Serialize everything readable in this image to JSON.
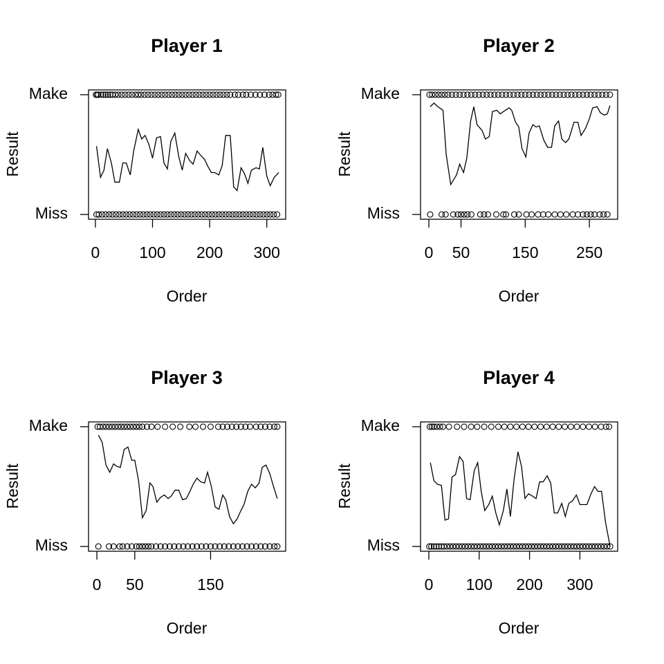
{
  "chart_data": [
    {
      "type": "scatter",
      "title": "Player 1",
      "xlabel": "Order",
      "ylabel": "Result",
      "xlim": [
        -12,
        333
      ],
      "ylim": [
        -0.04,
        1.04
      ],
      "xticks": [
        0,
        100,
        200,
        300
      ],
      "yticks": [
        {
          "value": 0,
          "label": "Miss"
        },
        {
          "value": 1,
          "label": "Make"
        }
      ],
      "make_order": [
        1,
        3,
        5,
        10,
        14,
        18,
        22,
        26,
        30,
        35,
        40,
        46,
        52,
        58,
        64,
        70,
        75,
        80,
        86,
        92,
        98,
        104,
        110,
        116,
        122,
        128,
        134,
        140,
        146,
        152,
        158,
        164,
        170,
        176,
        182,
        188,
        194,
        200,
        206,
        212,
        218,
        224,
        230,
        236,
        244,
        250,
        258,
        264,
        272,
        280,
        288,
        296,
        304,
        310,
        316,
        320
      ],
      "miss_order": [
        2,
        6,
        12,
        18,
        24,
        30,
        36,
        42,
        48,
        54,
        60,
        66,
        72,
        78,
        84,
        90,
        96,
        102,
        108,
        114,
        120,
        126,
        132,
        138,
        144,
        150,
        156,
        162,
        168,
        174,
        180,
        186,
        192,
        198,
        204,
        210,
        216,
        222,
        228,
        234,
        240,
        246,
        252,
        258,
        264,
        270,
        276,
        282,
        288,
        294,
        300,
        306,
        312,
        318
      ],
      "trend": {
        "x": [
          2,
          9,
          15,
          21,
          28,
          34,
          42,
          48,
          54,
          61,
          67,
          75,
          81,
          87,
          94,
          100,
          107,
          114,
          120,
          126,
          132,
          139,
          146,
          152,
          158,
          165,
          171,
          178,
          185,
          191,
          197,
          203,
          209,
          216,
          222,
          228,
          236,
          242,
          248,
          255,
          261,
          267,
          273,
          281,
          287,
          293,
          300,
          306,
          313,
          321
        ],
        "values": [
          0.57,
          0.31,
          0.37,
          0.55,
          0.43,
          0.27,
          0.27,
          0.43,
          0.43,
          0.33,
          0.53,
          0.71,
          0.63,
          0.66,
          0.58,
          0.47,
          0.64,
          0.65,
          0.43,
          0.38,
          0.61,
          0.68,
          0.48,
          0.37,
          0.51,
          0.45,
          0.42,
          0.53,
          0.49,
          0.46,
          0.4,
          0.35,
          0.35,
          0.33,
          0.41,
          0.66,
          0.66,
          0.23,
          0.2,
          0.39,
          0.34,
          0.26,
          0.37,
          0.39,
          0.38,
          0.56,
          0.32,
          0.24,
          0.31,
          0.35
        ]
      }
    },
    {
      "type": "scatter",
      "title": "Player 2",
      "xlabel": "Order",
      "ylabel": "Result",
      "xlim": [
        -13,
        294
      ],
      "ylim": [
        -0.04,
        1.04
      ],
      "xticks": [
        0,
        50,
        150,
        250
      ],
      "yticks": [
        {
          "value": 0,
          "label": "Miss"
        },
        {
          "value": 1,
          "label": "Make"
        }
      ],
      "make_order": [
        1,
        5,
        10,
        15,
        20,
        25,
        30,
        36,
        42,
        48,
        54,
        60,
        66,
        72,
        78,
        84,
        90,
        96,
        102,
        108,
        114,
        120,
        126,
        132,
        138,
        144,
        150,
        156,
        162,
        168,
        174,
        180,
        186,
        192,
        198,
        204,
        210,
        216,
        222,
        228,
        234,
        240,
        246,
        252,
        258,
        264,
        270,
        276,
        282
      ],
      "miss_order": [
        2,
        20,
        26,
        38,
        45,
        50,
        55,
        60,
        66,
        80,
        86,
        92,
        105,
        116,
        120,
        133,
        140,
        152,
        160,
        170,
        178,
        186,
        196,
        205,
        214,
        224,
        232,
        240,
        246,
        252,
        258,
        266,
        272,
        278
      ],
      "trend": {
        "x": [
          2,
          8,
          14,
          22,
          27,
          34,
          43,
          48,
          54,
          59,
          65,
          70,
          75,
          83,
          88,
          94,
          99,
          106,
          111,
          119,
          125,
          129,
          135,
          140,
          145,
          151,
          156,
          162,
          167,
          172,
          179,
          185,
          191,
          196,
          202,
          207,
          213,
          218,
          226,
          232,
          237,
          244,
          250,
          255,
          262,
          267,
          273,
          278,
          282
        ],
        "values": [
          0.9,
          0.93,
          0.9,
          0.87,
          0.5,
          0.25,
          0.33,
          0.42,
          0.35,
          0.47,
          0.78,
          0.9,
          0.75,
          0.7,
          0.63,
          0.65,
          0.86,
          0.87,
          0.84,
          0.87,
          0.89,
          0.87,
          0.77,
          0.73,
          0.55,
          0.48,
          0.68,
          0.75,
          0.73,
          0.74,
          0.62,
          0.56,
          0.56,
          0.74,
          0.78,
          0.63,
          0.6,
          0.63,
          0.77,
          0.77,
          0.66,
          0.72,
          0.8,
          0.89,
          0.9,
          0.85,
          0.83,
          0.84,
          0.91
        ]
      }
    },
    {
      "type": "scatter",
      "title": "Player 3",
      "xlabel": "Order",
      "ylabel": "Result",
      "xlim": [
        -11,
        249
      ],
      "ylim": [
        -0.04,
        1.04
      ],
      "xticks": [
        0,
        50,
        150
      ],
      "yticks": [
        {
          "value": 0,
          "label": "Miss"
        },
        {
          "value": 1,
          "label": "Make"
        }
      ],
      "make_order": [
        1,
        4,
        8,
        12,
        16,
        20,
        24,
        28,
        32,
        36,
        40,
        44,
        48,
        52,
        56,
        60,
        66,
        72,
        80,
        90,
        100,
        110,
        122,
        130,
        140,
        150,
        160,
        166,
        172,
        178,
        184,
        190,
        196,
        202,
        210,
        216,
        222,
        228,
        234,
        238
      ],
      "miss_order": [
        2,
        16,
        22,
        30,
        34,
        40,
        46,
        52,
        56,
        60,
        64,
        68,
        72,
        78,
        84,
        90,
        96,
        102,
        108,
        114,
        120,
        126,
        132,
        138,
        144,
        150,
        156,
        162,
        168,
        174,
        180,
        186,
        192,
        198,
        204,
        210,
        216,
        222,
        228,
        234,
        238
      ],
      "trend": {
        "x": [
          2,
          7,
          12,
          17,
          22,
          26,
          31,
          36,
          41,
          46,
          50,
          55,
          60,
          65,
          70,
          74,
          79,
          84,
          89,
          94,
          98,
          103,
          108,
          113,
          118,
          122,
          127,
          132,
          137,
          142,
          146,
          151,
          156,
          161,
          166,
          170,
          175,
          180,
          185,
          190,
          194,
          199,
          204,
          209,
          214,
          218,
          223,
          228,
          233,
          238
        ],
        "values": [
          0.93,
          0.87,
          0.68,
          0.62,
          0.69,
          0.67,
          0.66,
          0.81,
          0.83,
          0.72,
          0.72,
          0.55,
          0.24,
          0.3,
          0.53,
          0.5,
          0.37,
          0.41,
          0.43,
          0.4,
          0.42,
          0.47,
          0.47,
          0.39,
          0.4,
          0.45,
          0.52,
          0.57,
          0.54,
          0.53,
          0.62,
          0.5,
          0.33,
          0.31,
          0.43,
          0.39,
          0.25,
          0.19,
          0.23,
          0.3,
          0.35,
          0.46,
          0.52,
          0.49,
          0.53,
          0.66,
          0.68,
          0.61,
          0.5,
          0.4
        ]
      }
    },
    {
      "type": "scatter",
      "title": "Player 4",
      "xlabel": "Order",
      "ylabel": "Result",
      "xlim": [
        -16.5,
        375
      ],
      "ylim": [
        -0.04,
        1.04
      ],
      "xticks": [
        0,
        100,
        200,
        300
      ],
      "yticks": [
        {
          "value": 0,
          "label": "Miss"
        },
        {
          "value": 1,
          "label": "Make"
        }
      ],
      "make_order": [
        2,
        6,
        10,
        16,
        22,
        28,
        40,
        56,
        70,
        84,
        96,
        110,
        124,
        138,
        150,
        162,
        174,
        186,
        198,
        210,
        222,
        234,
        246,
        258,
        270,
        282,
        294,
        306,
        318,
        330,
        342,
        352,
        358
      ],
      "miss_order": [
        1,
        5,
        10,
        15,
        20,
        25,
        30,
        36,
        42,
        48,
        54,
        60,
        66,
        72,
        78,
        84,
        90,
        96,
        102,
        108,
        114,
        120,
        126,
        132,
        138,
        144,
        150,
        156,
        162,
        168,
        174,
        180,
        186,
        192,
        198,
        204,
        210,
        216,
        222,
        228,
        234,
        240,
        246,
        252,
        258,
        264,
        270,
        276,
        282,
        288,
        294,
        300,
        306,
        312,
        318,
        324,
        330,
        336,
        342,
        348,
        354,
        360
      ],
      "trend": {
        "x": [
          3,
          10,
          17,
          25,
          32,
          39,
          46,
          53,
          61,
          68,
          75,
          82,
          90,
          97,
          104,
          111,
          119,
          126,
          133,
          140,
          148,
          155,
          162,
          169,
          177,
          184,
          191,
          198,
          206,
          213,
          220,
          227,
          235,
          242,
          249,
          256,
          264,
          271,
          278,
          285,
          293,
          300,
          307,
          314,
          322,
          329,
          336,
          343,
          351,
          360
        ],
        "values": [
          0.7,
          0.55,
          0.52,
          0.51,
          0.22,
          0.23,
          0.58,
          0.6,
          0.75,
          0.71,
          0.4,
          0.39,
          0.63,
          0.7,
          0.46,
          0.3,
          0.35,
          0.42,
          0.28,
          0.18,
          0.3,
          0.48,
          0.25,
          0.55,
          0.79,
          0.67,
          0.4,
          0.44,
          0.42,
          0.4,
          0.54,
          0.54,
          0.59,
          0.53,
          0.28,
          0.28,
          0.36,
          0.25,
          0.36,
          0.38,
          0.43,
          0.35,
          0.35,
          0.35,
          0.44,
          0.5,
          0.46,
          0.46,
          0.2,
          0
        ]
      }
    }
  ]
}
